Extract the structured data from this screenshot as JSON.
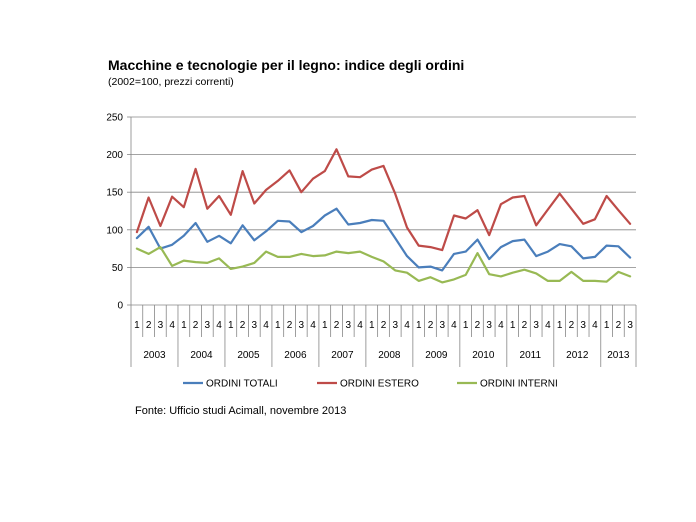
{
  "chart_data": {
    "type": "line",
    "title": "Macchine e tecnologie per il legno: indice degli ordini",
    "subtitle": "(2002=100, prezzi correnti)",
    "source": "Fonte: Ufficio studi Acimall, novembre 2013",
    "ylim": [
      0,
      250
    ],
    "yticks": [
      "0",
      "50",
      "100",
      "150",
      "200",
      "250"
    ],
    "grid": true,
    "legend_position": "bottom",
    "quarters": [
      "1",
      "2",
      "3",
      "4",
      "1",
      "2",
      "3",
      "4",
      "1",
      "2",
      "3",
      "4",
      "1",
      "2",
      "3",
      "4",
      "1",
      "2",
      "3",
      "4",
      "1",
      "2",
      "3",
      "4",
      "1",
      "2",
      "3",
      "4",
      "1",
      "2",
      "3",
      "4",
      "1",
      "2",
      "3",
      "4",
      "1",
      "2",
      "3",
      "4",
      "1",
      "2",
      "3"
    ],
    "years": [
      {
        "label": "2003",
        "count": 4
      },
      {
        "label": "2004",
        "count": 4
      },
      {
        "label": "2005",
        "count": 4
      },
      {
        "label": "2006",
        "count": 4
      },
      {
        "label": "2007",
        "count": 4
      },
      {
        "label": "2008",
        "count": 4
      },
      {
        "label": "2009",
        "count": 4
      },
      {
        "label": "2010",
        "count": 4
      },
      {
        "label": "2011",
        "count": 4
      },
      {
        "label": "2012",
        "count": 4
      },
      {
        "label": "2013",
        "count": 3
      }
    ],
    "series": [
      {
        "name": "ORDINI TOTALI",
        "color": "#4a7ebb",
        "values": [
          89,
          104,
          75,
          80,
          92,
          109,
          84,
          92,
          82,
          106,
          86,
          98,
          112,
          111,
          97,
          105,
          119,
          128,
          107,
          109,
          113,
          112,
          89,
          65,
          50,
          51,
          46,
          68,
          71,
          87,
          61,
          77,
          85,
          87,
          65,
          71,
          81,
          78,
          62,
          64,
          79,
          78,
          63
        ]
      },
      {
        "name": "ORDINI ESTERO",
        "color": "#be4b48",
        "values": [
          97,
          143,
          105,
          144,
          130,
          181,
          128,
          145,
          120,
          178,
          135,
          153,
          165,
          179,
          150,
          168,
          178,
          207,
          171,
          170,
          180,
          185,
          148,
          103,
          79,
          77,
          73,
          119,
          115,
          126,
          93,
          134,
          143,
          145,
          106,
          127,
          148,
          128,
          108,
          114,
          145,
          126,
          108
        ]
      },
      {
        "name": "ORDINI INTERNI",
        "color": "#98b954",
        "values": [
          75,
          68,
          77,
          52,
          59,
          57,
          56,
          62,
          48,
          51,
          56,
          71,
          64,
          64,
          68,
          65,
          66,
          71,
          69,
          71,
          64,
          58,
          46,
          43,
          32,
          37,
          30,
          34,
          40,
          69,
          41,
          38,
          43,
          47,
          42,
          32,
          32,
          44,
          32,
          32,
          31,
          44,
          38
        ]
      }
    ]
  }
}
